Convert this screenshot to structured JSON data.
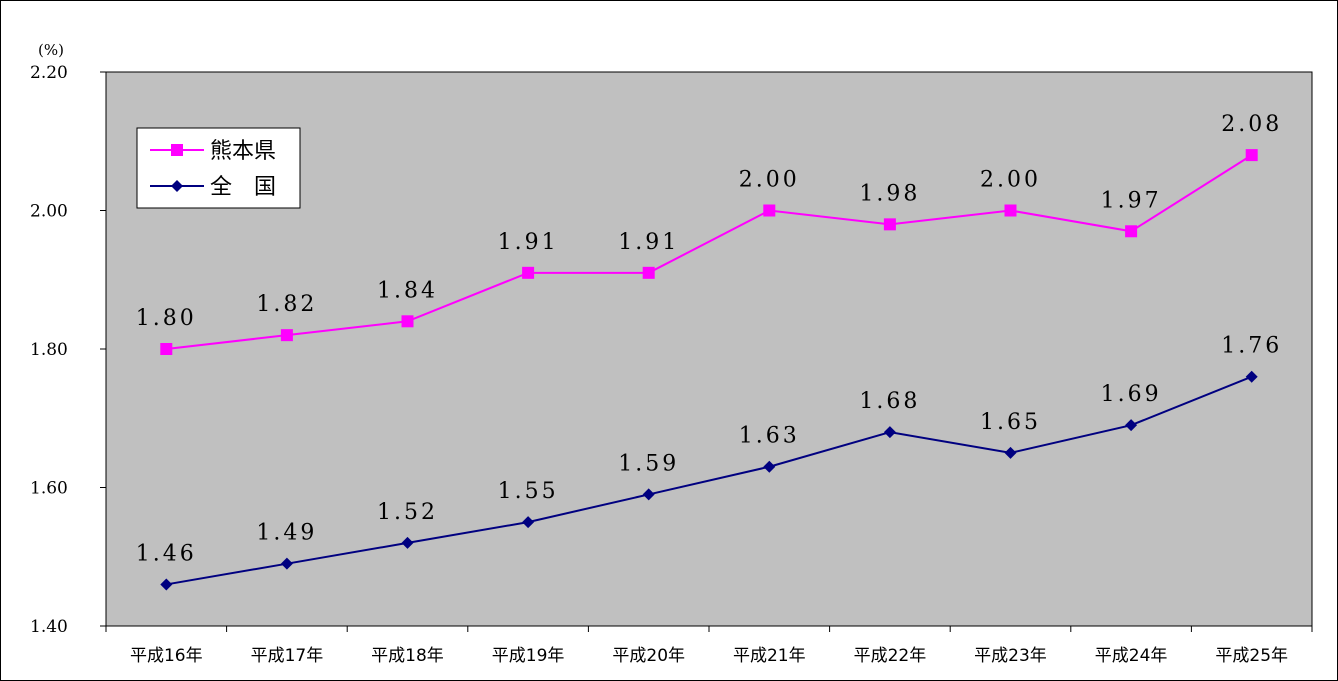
{
  "chart_data": {
    "type": "line",
    "ylabel": "(%)",
    "ylim": [
      1.4,
      2.2
    ],
    "yticks": [
      "1.40",
      "1.60",
      "1.80",
      "2.00",
      "2.20"
    ],
    "grid": false,
    "legend_position": "top-left",
    "categories": [
      "平成16年",
      "平成17年",
      "平成18年",
      "平成19年",
      "平成20年",
      "平成21年",
      "平成22年",
      "平成23年",
      "平成24年",
      "平成25年"
    ],
    "series": [
      {
        "name": "熊本県",
        "color": "#ff00ff",
        "marker": "square",
        "values": [
          1.8,
          1.82,
          1.84,
          1.91,
          1.91,
          2.0,
          1.98,
          2.0,
          1.97,
          2.08
        ],
        "labels": [
          "1.80",
          "1.82",
          "1.84",
          "1.91",
          "1.91",
          "2.00",
          "1.98",
          "2.00",
          "1.97",
          "2.08"
        ]
      },
      {
        "name": "全　国",
        "color": "#000080",
        "marker": "diamond",
        "values": [
          1.46,
          1.49,
          1.52,
          1.55,
          1.59,
          1.63,
          1.68,
          1.65,
          1.69,
          1.76
        ],
        "labels": [
          "1.46",
          "1.49",
          "1.52",
          "1.55",
          "1.59",
          "1.63",
          "1.68",
          "1.65",
          "1.69",
          "1.76"
        ]
      }
    ],
    "plot_background": "#c0c0c0"
  }
}
